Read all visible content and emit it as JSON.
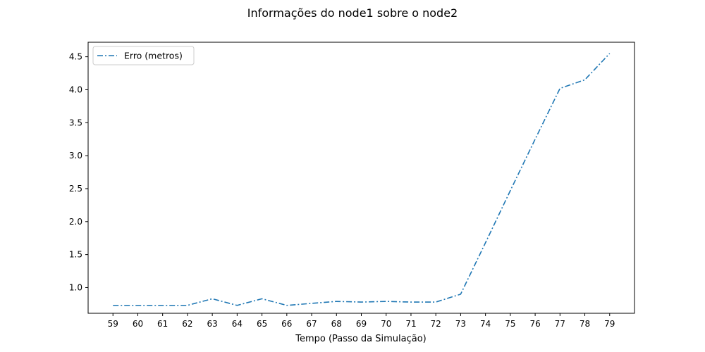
{
  "chart_data": {
    "type": "line",
    "title": "Informações do node1 sobre o node2",
    "xlabel": "Tempo (Passo da Simulação)",
    "ylabel": "",
    "x": [
      59,
      60,
      61,
      62,
      63,
      64,
      65,
      66,
      67,
      68,
      69,
      70,
      71,
      72,
      73,
      74,
      75,
      76,
      77,
      78,
      79
    ],
    "xlim": [
      58,
      80
    ],
    "ylim": [
      0.61,
      4.72
    ],
    "x_ticks": [
      59,
      60,
      61,
      62,
      63,
      64,
      65,
      66,
      67,
      68,
      69,
      70,
      71,
      72,
      73,
      74,
      75,
      76,
      77,
      78,
      79
    ],
    "y_ticks": [
      1.0,
      1.5,
      2.0,
      2.5,
      3.0,
      3.5,
      4.0,
      4.5
    ],
    "grid": false,
    "legend_position": "top-left",
    "series": [
      {
        "name": "Erro (metros)",
        "color": "#1f77b4",
        "line_style": "dash-dot",
        "values": [
          0.73,
          0.73,
          0.73,
          0.73,
          0.83,
          0.73,
          0.83,
          0.73,
          0.76,
          0.79,
          0.78,
          0.79,
          0.78,
          0.78,
          0.9,
          1.68,
          2.47,
          3.25,
          4.02,
          4.15,
          4.55
        ]
      }
    ]
  }
}
